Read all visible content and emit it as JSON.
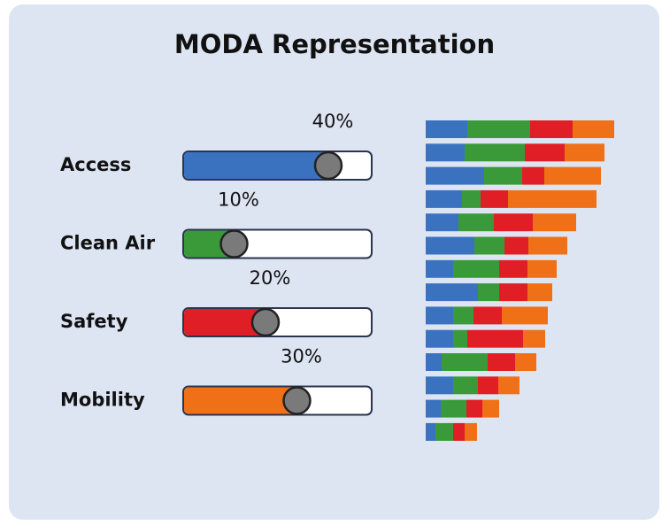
{
  "title": "MODA Representation",
  "sliders": [
    {
      "label": "Access",
      "value": 40,
      "value_label": "40%",
      "color": "#3a72c0"
    },
    {
      "label": "Clean Air",
      "value": 10,
      "value_label": "10%",
      "color": "#3a9a3a"
    },
    {
      "label": "Safety",
      "value": 20,
      "value_label": "20%",
      "color": "#e01e26"
    },
    {
      "label": "Mobility",
      "value": 30,
      "value_label": "30%",
      "color": "#f07018"
    }
  ],
  "chart_data": {
    "type": "stacked-bar-horizontal",
    "series": [
      {
        "color": "#3a72c0",
        "values": [
          47,
          44,
          66,
          41,
          37,
          55,
          31,
          59,
          31,
          31,
          18,
          31,
          17,
          11
        ]
      },
      {
        "color": "#3a9a3a",
        "values": [
          71,
          68,
          43,
          21,
          40,
          34,
          52,
          24,
          23,
          16,
          52,
          28,
          29,
          20
        ]
      },
      {
        "color": "#e01e26",
        "values": [
          48,
          45,
          25,
          31,
          44,
          27,
          32,
          32,
          32,
          63,
          31,
          23,
          18,
          13
        ]
      },
      {
        "color": "#f07018",
        "values": [
          47,
          45,
          64,
          100,
          49,
          44,
          33,
          28,
          52,
          25,
          24,
          24,
          19,
          14
        ]
      }
    ]
  }
}
